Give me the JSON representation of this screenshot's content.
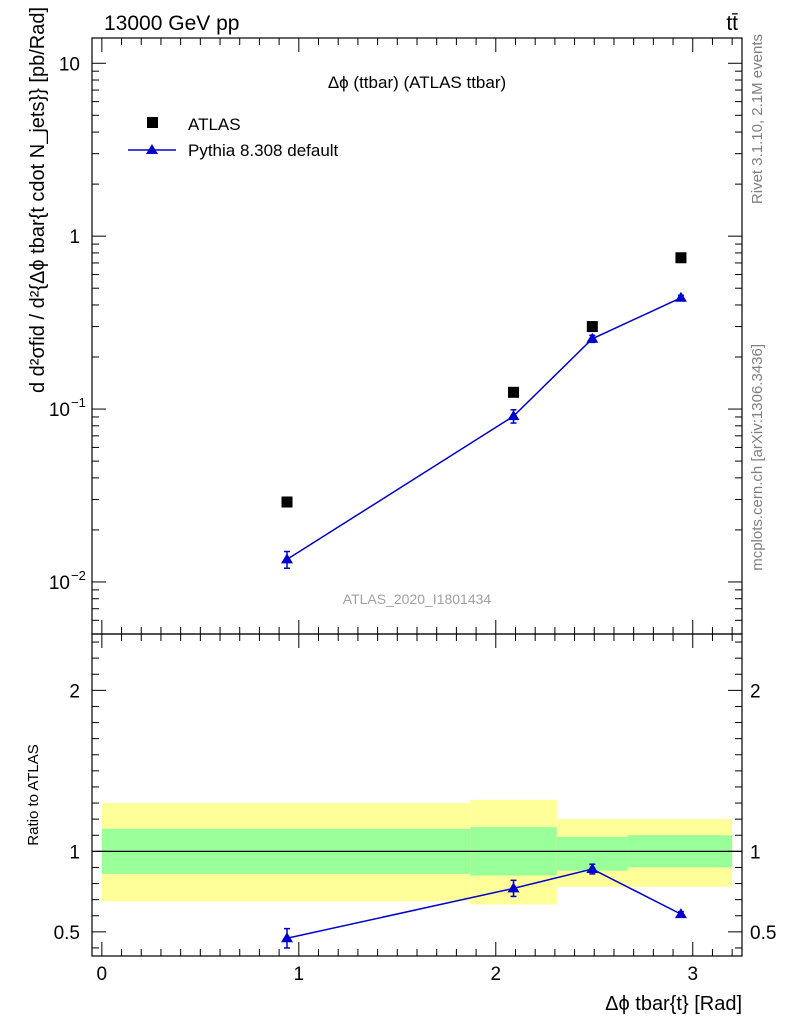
{
  "header": {
    "left": "13000 GeV pp",
    "right": "tt̄"
  },
  "side": {
    "rivet": "Rivet 3.1.10,  2.1M events",
    "mcplots": "mcplots.cern.ch [arXiv:1306.3436]"
  },
  "colors": {
    "mc": "#0000cc",
    "data": "#000000",
    "band_outer": "#ffff99",
    "band_inner": "#99ff99"
  },
  "chart_data": [
    {
      "type": "scatter",
      "title": "Δϕ (ttbar) (ATLAS ttbar)",
      "watermark": "ATLAS_2020_I1801434",
      "ylabel": "d d²σfid / d²{Δϕ tbar{t cdot N_jets}} [pb/Rad]",
      "yscale": "log",
      "xlim": [
        -0.05,
        3.25
      ],
      "ylim": [
        0.005,
        14
      ],
      "ytick_labels": [
        {
          "value": 0.01,
          "base": "10",
          "exp": "−2"
        },
        {
          "value": 0.1,
          "base": "10",
          "exp": "−1"
        },
        {
          "value": 1,
          "base": "1",
          "exp": ""
        },
        {
          "value": 10,
          "base": "10",
          "exp": ""
        }
      ],
      "legend": {
        "position": "top-left",
        "entries": [
          "ATLAS",
          "Pythia 8.308 default"
        ]
      },
      "series": [
        {
          "name": "ATLAS",
          "marker": "square",
          "x": [
            0.94,
            2.09,
            2.49,
            2.94
          ],
          "y": [
            0.029,
            0.125,
            0.3,
            0.75
          ]
        },
        {
          "name": "Pythia 8.308 default",
          "marker": "triangle",
          "x": [
            0.94,
            2.09,
            2.49,
            2.94
          ],
          "y": [
            0.0135,
            0.091,
            0.255,
            0.44
          ],
          "yerr": [
            0.0015,
            0.008,
            0.012,
            0.015
          ]
        }
      ]
    },
    {
      "type": "scatter",
      "ylabel": "Ratio to ATLAS",
      "xlabel": "Δϕ tbar{t} [Rad]",
      "xlim": [
        -0.05,
        3.25
      ],
      "ylim": [
        0.35,
        2.35
      ],
      "xticks": [
        0,
        1,
        2,
        3
      ],
      "yticks": [
        0.5,
        1,
        2
      ],
      "bands": [
        {
          "x0": 0.0,
          "x1": 1.87,
          "inner": [
            0.86,
            1.14
          ],
          "outer": [
            0.69,
            1.3
          ]
        },
        {
          "x0": 1.87,
          "x1": 2.31,
          "inner": [
            0.85,
            1.15
          ],
          "outer": [
            0.67,
            1.32
          ]
        },
        {
          "x0": 2.31,
          "x1": 2.67,
          "inner": [
            0.88,
            1.09
          ],
          "outer": [
            0.78,
            1.2
          ]
        },
        {
          "x0": 2.67,
          "x1": 3.2,
          "inner": [
            0.9,
            1.1
          ],
          "outer": [
            0.78,
            1.2
          ]
        }
      ],
      "series": [
        {
          "name": "Pythia 8.308 default",
          "x": [
            0.94,
            2.09,
            2.49,
            2.94
          ],
          "y": [
            0.46,
            0.77,
            0.89,
            0.61
          ],
          "yerr": [
            0.06,
            0.05,
            0.03,
            0.015
          ]
        }
      ]
    }
  ]
}
